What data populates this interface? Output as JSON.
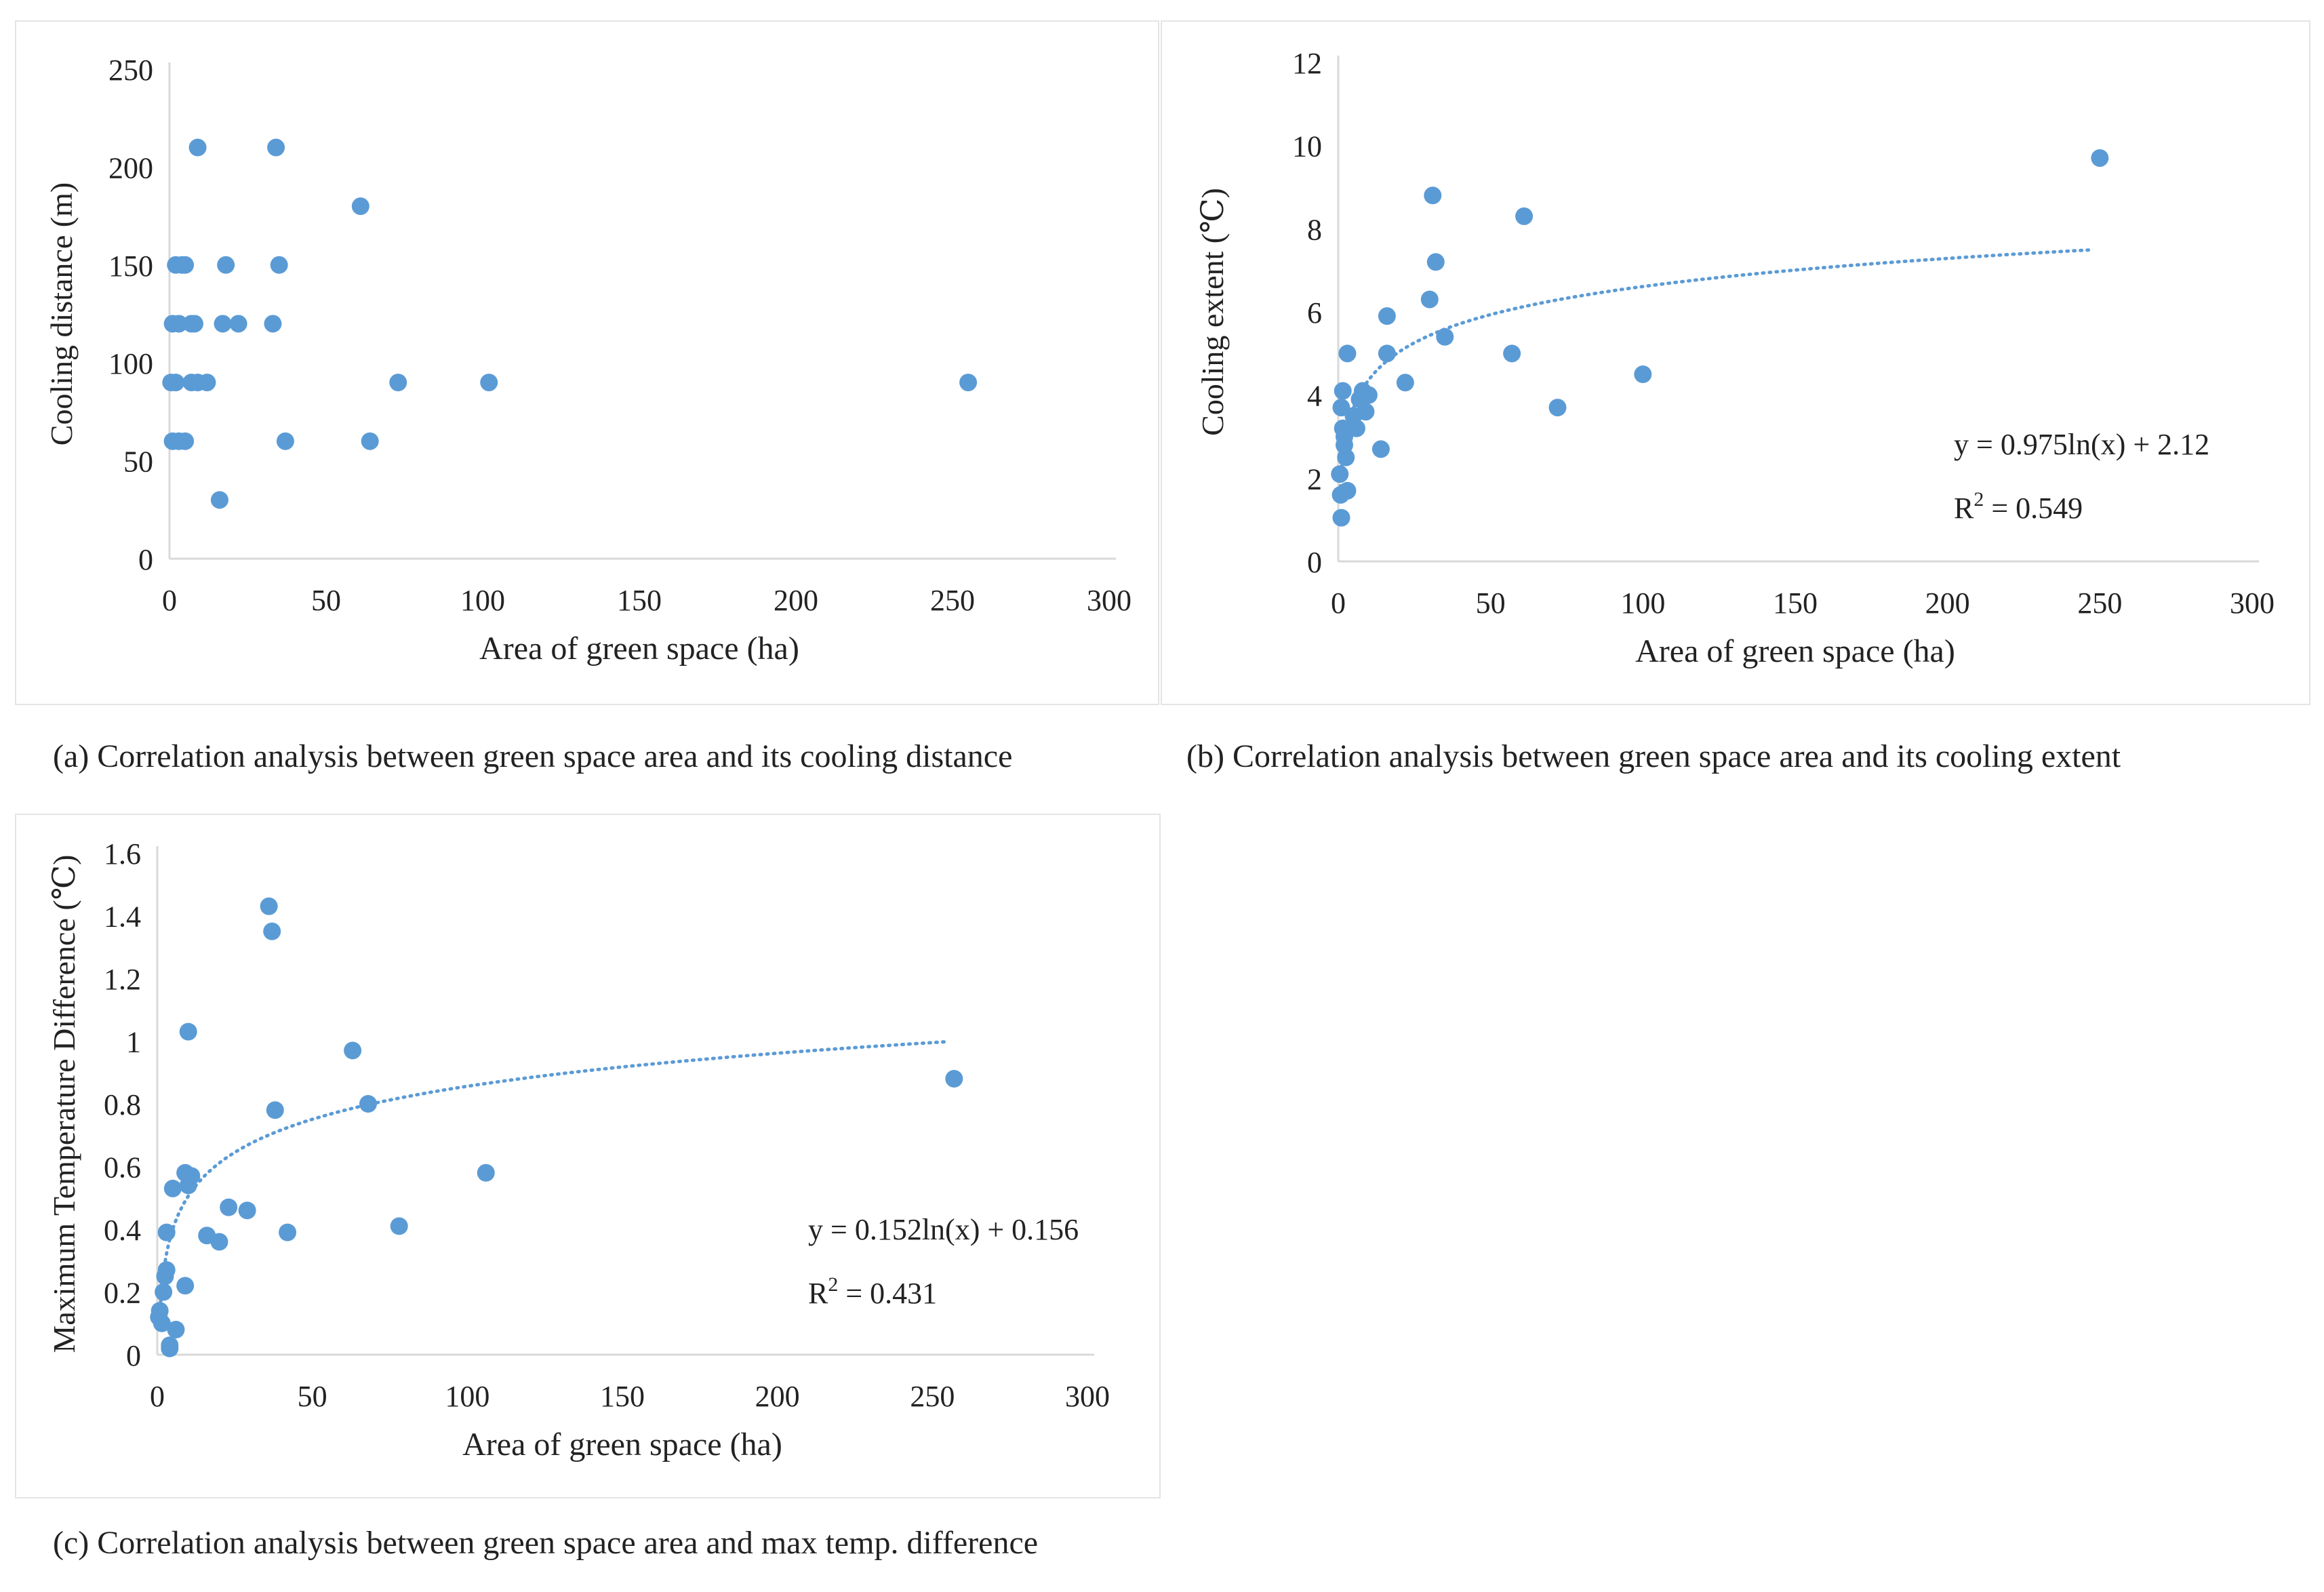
{
  "colors": {
    "points": "#5b9bd5",
    "trend": "#5b9bd5",
    "axis": "#d9d9d9",
    "text": "#222222"
  },
  "captions": {
    "a": "(a) Correlation analysis between green space area and its cooling distance",
    "b": "(b) Correlation analysis between green space area and its cooling extent",
    "c": "(c) Correlation analysis between green space area and max temp. difference"
  },
  "chart_data": [
    {
      "id": "a",
      "type": "scatter",
      "xlabel": "Area of green space (ha)",
      "ylabel": "Cooling distance (m)",
      "xlim": [
        0,
        300
      ],
      "ylim": [
        0,
        250
      ],
      "xticks": [
        0,
        50,
        100,
        150,
        200,
        250,
        300
      ],
      "yticks": [
        0,
        50,
        100,
        150,
        200,
        250
      ],
      "ytick_labels": [
        "0",
        "50",
        "100",
        "150",
        "200",
        "250"
      ],
      "points": [
        [
          0.5,
          90
        ],
        [
          1,
          60
        ],
        [
          2,
          90
        ],
        [
          3,
          60
        ],
        [
          5,
          60
        ],
        [
          7,
          90
        ],
        [
          9,
          90
        ],
        [
          12,
          90
        ],
        [
          1,
          120
        ],
        [
          3,
          120
        ],
        [
          7,
          120
        ],
        [
          8,
          120
        ],
        [
          2,
          150
        ],
        [
          4,
          150
        ],
        [
          5,
          150
        ],
        [
          9,
          210
        ],
        [
          16,
          30
        ],
        [
          17,
          120
        ],
        [
          18,
          150
        ],
        [
          22,
          120
        ],
        [
          33,
          120
        ],
        [
          34,
          210
        ],
        [
          35,
          150
        ],
        [
          37,
          60
        ],
        [
          61,
          180
        ],
        [
          64,
          60
        ],
        [
          73,
          90
        ],
        [
          102,
          90
        ],
        [
          255,
          90
        ]
      ],
      "trendline": null
    },
    {
      "id": "b",
      "type": "scatter",
      "xlabel": "Area of green space (ha)",
      "ylabel": "Cooling extent (℃)",
      "xlim": [
        0,
        300
      ],
      "ylim": [
        0,
        12
      ],
      "xticks": [
        0,
        50,
        100,
        150,
        200,
        250,
        300
      ],
      "yticks": [
        0,
        2,
        4,
        6,
        8,
        10,
        12
      ],
      "ytick_labels": [
        "0",
        "2",
        "4",
        "6",
        "8",
        "10",
        "12"
      ],
      "points": [
        [
          0.5,
          2.1
        ],
        [
          0.8,
          1.6
        ],
        [
          1,
          1.05
        ],
        [
          1,
          3.7
        ],
        [
          1.5,
          3.2
        ],
        [
          1.5,
          4.1
        ],
        [
          2,
          2.8
        ],
        [
          2,
          3.0
        ],
        [
          2.5,
          2.5
        ],
        [
          3,
          1.7
        ],
        [
          3,
          5.0
        ],
        [
          5,
          3.5
        ],
        [
          6,
          3.2
        ],
        [
          7,
          3.9
        ],
        [
          8,
          4.1
        ],
        [
          9,
          3.6
        ],
        [
          10,
          4.0
        ],
        [
          14,
          2.7
        ],
        [
          16,
          5.0
        ],
        [
          16,
          5.9
        ],
        [
          22,
          4.3
        ],
        [
          30,
          6.3
        ],
        [
          31,
          8.8
        ],
        [
          32,
          7.2
        ],
        [
          35,
          5.4
        ],
        [
          57,
          5.0
        ],
        [
          61,
          8.3
        ],
        [
          72,
          3.7
        ],
        [
          100,
          4.5
        ],
        [
          250,
          9.7
        ]
      ],
      "trendline": {
        "a": 0.975,
        "b": 2.12,
        "x_from": 0.6,
        "x_to": 248
      },
      "equation": "y = 0.975ln(x) + 2.12",
      "r2_prefix": "R",
      "r2_sup": "2",
      "r2_value": " = 0.549"
    },
    {
      "id": "c",
      "type": "scatter",
      "xlabel": "Area of green space (ha)",
      "ylabel": "Maximum Temperature Difference (℃)",
      "xlim": [
        0,
        300
      ],
      "ylim": [
        0,
        1.6
      ],
      "xticks": [
        0,
        50,
        100,
        150,
        200,
        250,
        300
      ],
      "yticks": [
        0,
        0.2,
        0.4,
        0.6,
        0.8,
        1,
        1.2,
        1.4,
        1.6
      ],
      "ytick_labels": [
        "0",
        "0.2",
        "0.4",
        "0.6",
        "0.8",
        "1",
        "1.2",
        "1.4",
        "1.6"
      ],
      "points": [
        [
          0.5,
          0.12
        ],
        [
          0.8,
          0.14
        ],
        [
          1.5,
          0.1
        ],
        [
          2,
          0.2
        ],
        [
          2.5,
          0.25
        ],
        [
          3,
          0.27
        ],
        [
          3,
          0.39
        ],
        [
          4,
          0.03
        ],
        [
          4,
          0.02
        ],
        [
          6,
          0.08
        ],
        [
          5,
          0.53
        ],
        [
          9,
          0.22
        ],
        [
          9,
          0.58
        ],
        [
          10,
          0.54
        ],
        [
          11,
          0.57
        ],
        [
          10,
          1.03
        ],
        [
          16,
          0.38
        ],
        [
          20,
          0.36
        ],
        [
          23,
          0.47
        ],
        [
          29,
          0.46
        ],
        [
          36,
          1.43
        ],
        [
          37,
          1.35
        ],
        [
          38,
          0.78
        ],
        [
          42,
          0.39
        ],
        [
          63,
          0.97
        ],
        [
          68,
          0.8
        ],
        [
          78,
          0.41
        ],
        [
          106,
          0.58
        ],
        [
          257,
          0.88
        ]
      ],
      "trendline": {
        "a": 0.152,
        "b": 0.156,
        "x_from": 1.1,
        "x_to": 254
      },
      "equation": "y = 0.152ln(x) + 0.156",
      "r2_prefix": "R",
      "r2_sup": "2",
      "r2_value": " = 0.431"
    }
  ]
}
